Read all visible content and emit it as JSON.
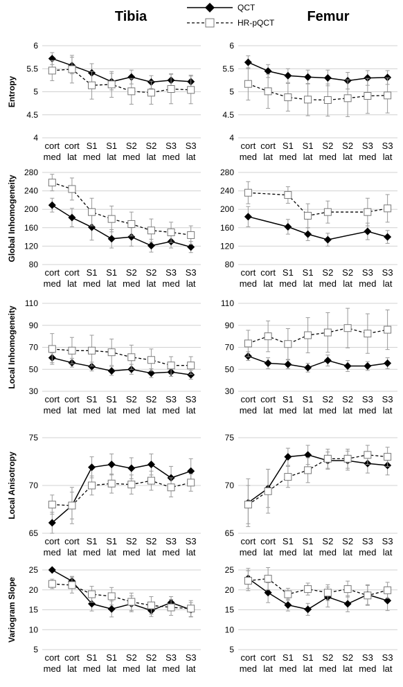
{
  "figure": {
    "col_titles": [
      "Tibia",
      "Femur"
    ],
    "legend": [
      {
        "label": "QCT",
        "marker": "diamond-filled",
        "line": "solid"
      },
      {
        "label": "HR-pQCT",
        "marker": "square-open",
        "line": "dashed"
      }
    ],
    "colors": {
      "qct": "#000000",
      "hrpqct": "#000000",
      "grid": "#d0d0d0",
      "error_bar": "#9a9a9a"
    }
  },
  "chart_data": [
    {
      "type": "line",
      "panel": "Tibia",
      "ylabel": "Entropy",
      "ylim": [
        4,
        6
      ],
      "yticks": [
        "4",
        "4.5",
        "5",
        "5.5",
        "6"
      ],
      "categories": [
        "cort med",
        "cort lat",
        "S1 med",
        "S1 lat",
        "S2 med",
        "S2 lat",
        "S3 med",
        "S3 lat"
      ],
      "series": [
        {
          "name": "QCT",
          "values": [
            5.72,
            5.57,
            5.41,
            5.22,
            5.32,
            5.21,
            5.25,
            5.22
          ],
          "error": [
            0.13,
            0.18,
            0.2,
            0.18,
            0.15,
            0.14,
            0.14,
            0.14
          ]
        },
        {
          "name": "HR-pQCT",
          "values": [
            5.46,
            5.49,
            5.14,
            5.16,
            5.01,
            4.98,
            5.06,
            5.04
          ],
          "error": [
            0.22,
            0.3,
            0.3,
            0.28,
            0.28,
            0.25,
            0.32,
            0.3
          ]
        }
      ]
    },
    {
      "type": "line",
      "panel": "Femur",
      "ylabel": "",
      "ylim": [
        4,
        6
      ],
      "yticks": [
        "4",
        "4.5",
        "5",
        "5.5",
        "6"
      ],
      "categories": [
        "cort med",
        "cort lat",
        "S1 med",
        "S1 lat",
        "S2 med",
        "S2 lat",
        "S3 med",
        "S3 lat"
      ],
      "series": [
        {
          "name": "QCT",
          "values": [
            5.64,
            5.45,
            5.35,
            5.32,
            5.3,
            5.24,
            5.3,
            5.31
          ],
          "error": [
            0.14,
            0.14,
            0.15,
            0.15,
            0.17,
            0.18,
            0.16,
            0.15
          ]
        },
        {
          "name": "HR-pQCT",
          "values": [
            5.17,
            5.01,
            4.88,
            4.83,
            4.82,
            4.86,
            4.91,
            4.92
          ],
          "error": [
            0.35,
            0.37,
            0.3,
            0.35,
            0.35,
            0.4,
            0.38,
            0.38
          ]
        }
      ]
    },
    {
      "type": "line",
      "panel": "Tibia",
      "ylabel": "Global Inhomogeneity",
      "ylim": [
        80,
        280
      ],
      "yticks": [
        "80",
        "120",
        "160",
        "200",
        "240",
        "280"
      ],
      "categories": [
        "cort med",
        "cort lat",
        "S1 med",
        "S1 lat",
        "S2 med",
        "S2 lat",
        "S3 med",
        "S3 lat"
      ],
      "series": [
        {
          "name": "QCT",
          "values": [
            209,
            182,
            161,
            136,
            140,
            121,
            130,
            118
          ],
          "error": [
            15,
            20,
            28,
            20,
            20,
            14,
            14,
            12
          ]
        },
        {
          "name": "HR-pQCT",
          "values": [
            258,
            244,
            194,
            179,
            168,
            154,
            150,
            144
          ],
          "error": [
            18,
            24,
            30,
            28,
            26,
            25,
            22,
            20
          ]
        }
      ]
    },
    {
      "type": "line",
      "panel": "Femur",
      "ylabel": "",
      "ylim": [
        80,
        280
      ],
      "yticks": [
        "80",
        "120",
        "160",
        "200",
        "240",
        "280"
      ],
      "categories": [
        "cort med",
        "cort lat",
        "S1 med",
        "S1 lat",
        "S2 med",
        "S2 lat",
        "S3 med",
        "S3 lat"
      ],
      "series": [
        {
          "name": "QCT",
          "values": [
            184,
            null,
            162,
            146,
            134,
            null,
            152,
            140
          ],
          "error": [
            22,
            0,
            16,
            14,
            14,
            0,
            18,
            14
          ]
        },
        {
          "name": "HR-pQCT",
          "values": [
            236,
            null,
            231,
            186,
            194,
            null,
            194,
            202
          ],
          "error": [
            24,
            0,
            18,
            26,
            24,
            0,
            30,
            30
          ]
        }
      ]
    },
    {
      "type": "line",
      "panel": "Tibia",
      "ylabel": "Local Inhomogeneity",
      "ylim": [
        30,
        110
      ],
      "yticks": [
        "30",
        "50",
        "70",
        "90",
        "110"
      ],
      "categories": [
        "cort med",
        "cort lat",
        "S1 med",
        "S1 lat",
        "S2 med",
        "S2 lat",
        "S3 med",
        "S3 lat"
      ],
      "series": [
        {
          "name": "QCT",
          "values": [
            60.5,
            56,
            52.5,
            48.5,
            50,
            46.5,
            47.5,
            45
          ],
          "error": [
            4.5,
            4,
            4,
            4,
            4.5,
            4,
            4,
            4
          ]
        },
        {
          "name": "HR-pQCT",
          "values": [
            68.5,
            67,
            67,
            65.5,
            61,
            58.5,
            53.5,
            53.5
          ],
          "error": [
            14,
            12,
            14,
            12,
            11,
            10,
            8,
            8
          ]
        }
      ]
    },
    {
      "type": "line",
      "panel": "Femur",
      "ylabel": "",
      "ylim": [
        30,
        110
      ],
      "yticks": [
        "30",
        "50",
        "70",
        "90",
        "110"
      ],
      "categories": [
        "cort med",
        "cort lat",
        "S1 med",
        "S1 lat",
        "S2 med",
        "S2 lat",
        "S3 med",
        "S3 lat"
      ],
      "series": [
        {
          "name": "QCT",
          "values": [
            62,
            55.5,
            54.5,
            51.5,
            58,
            53,
            53,
            55.5
          ],
          "error": [
            4,
            5,
            4,
            4,
            5,
            5,
            4,
            5
          ]
        },
        {
          "name": "HR-pQCT",
          "values": [
            73.5,
            80,
            73,
            81,
            83.5,
            87.5,
            82.5,
            86
          ],
          "error": [
            12,
            14,
            14,
            16,
            18,
            18,
            18,
            18
          ]
        }
      ]
    },
    {
      "type": "line",
      "panel": "Tibia",
      "ylabel": "Local Anisotropy",
      "ylim": [
        65,
        75
      ],
      "yticks": [
        "65",
        "70",
        "75"
      ],
      "categories": [
        "cort med",
        "cort lat",
        "S1 med",
        "S1 lat",
        "S2 med",
        "S2 lat",
        "S3 med",
        "S3 lat"
      ],
      "series": [
        {
          "name": "QCT",
          "values": [
            66.1,
            67.9,
            71.9,
            72.2,
            71.8,
            72.2,
            70.8,
            71.5
          ],
          "error": [
            1.1,
            1.4,
            1.1,
            1.1,
            1.1,
            1.1,
            1.2,
            1.3
          ]
        },
        {
          "name": "HR-pQCT",
          "values": [
            68,
            67.9,
            70,
            70.2,
            70.1,
            70.5,
            69.8,
            70.3
          ],
          "error": [
            1.0,
            1.9,
            1.0,
            1.0,
            1.0,
            1.0,
            1.0,
            0.9
          ]
        }
      ]
    },
    {
      "type": "line",
      "panel": "Femur",
      "ylabel": "",
      "ylim": [
        65,
        75
      ],
      "yticks": [
        "65",
        "70",
        "75"
      ],
      "categories": [
        "cort med",
        "cort lat",
        "S1 med",
        "S1 lat",
        "S2 med",
        "S2 lat",
        "S3 med",
        "S3 lat"
      ],
      "series": [
        {
          "name": "QCT",
          "values": [
            68.2,
            69.7,
            73.0,
            73.2,
            72.6,
            72.6,
            72.3,
            72.1
          ],
          "error": [
            2.5,
            2.0,
            0.9,
            1.0,
            0.9,
            1.0,
            1.0,
            1.0
          ]
        },
        {
          "name": "HR-pQCT",
          "values": [
            68.0,
            69.4,
            70.9,
            71.6,
            72.8,
            72.8,
            73.2,
            73.0
          ],
          "error": [
            2.0,
            2.3,
            1.1,
            1.3,
            1.0,
            1.0,
            1.0,
            1.0
          ]
        }
      ]
    },
    {
      "type": "line",
      "panel": "Tibia",
      "ylabel": "Variogram Slope",
      "ylim": [
        5,
        25
      ],
      "yticks": [
        "5",
        "10",
        "15",
        "20",
        "25"
      ],
      "categories": [
        "cort med",
        "cort lat",
        "S1 med",
        "S1 lat",
        "S2 med",
        "S2 lat",
        "S3 med",
        "S3 lat"
      ],
      "series": [
        {
          "name": "QCT",
          "values": [
            25.0,
            22.2,
            16.5,
            15.2,
            16.5,
            14.8,
            16.8,
            15.0
          ],
          "error": [
            0,
            1.2,
            1.8,
            2.0,
            2.0,
            1.5,
            1.5,
            1.8
          ]
        },
        {
          "name": "HR-pQCT",
          "values": [
            21.5,
            21.2,
            18.9,
            18.4,
            17.0,
            16.1,
            15.6,
            15.3
          ],
          "error": [
            1.2,
            2.0,
            2.0,
            2.2,
            2.2,
            2.2,
            2.0,
            2.0
          ]
        }
      ]
    },
    {
      "type": "line",
      "panel": "Femur",
      "ylabel": "",
      "ylim": [
        5,
        25
      ],
      "yticks": [
        "5",
        "10",
        "15",
        "20",
        "25"
      ],
      "categories": [
        "cort med",
        "cort lat",
        "S1 med",
        "S1 lat",
        "S2 med",
        "S2 lat",
        "S3 med",
        "S3 lat"
      ],
      "series": [
        {
          "name": "QCT",
          "values": [
            22.9,
            19.3,
            16.2,
            15.1,
            18.2,
            16.5,
            18.8,
            17.3
          ],
          "error": [
            2.5,
            2.5,
            1.5,
            1.5,
            2.5,
            2.0,
            2.5,
            2.5
          ]
        },
        {
          "name": "HR-pQCT",
          "values": [
            22.3,
            22.8,
            18.9,
            20.2,
            19.3,
            20.2,
            18.6,
            19.9
          ],
          "error": [
            2.5,
            2.8,
            1.5,
            1.5,
            2.0,
            2.0,
            2.5,
            2.0
          ]
        }
      ]
    }
  ]
}
